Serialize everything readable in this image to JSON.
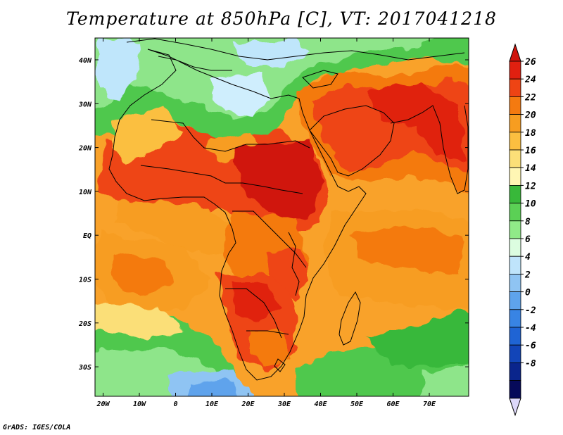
{
  "title": "Temperature at 850hPa [C], VT: 2017041218",
  "footer": "GrADS: IGES/COLA",
  "map": {
    "lat_ticks": [
      "40N",
      "30N",
      "20N",
      "10N",
      "EQ",
      "10S",
      "20S",
      "30S"
    ],
    "lon_ticks": [
      "20W",
      "10W",
      "0",
      "10E",
      "20E",
      "30E",
      "40E",
      "50E",
      "60E",
      "70E"
    ]
  },
  "colorbar": {
    "labels": [
      "26",
      "24",
      "22",
      "20",
      "18",
      "16",
      "14",
      "12",
      "10",
      "8",
      "6",
      "4",
      "2",
      "0",
      "-2",
      "-4",
      "-6",
      "-8"
    ],
    "colors": [
      "#e02010",
      "#ee4414",
      "#f47a10",
      "#f79d20",
      "#fbbf40",
      "#fbdf78",
      "#fff6b4",
      "#38b83a",
      "#5bd055",
      "#90ea88",
      "#dcfde0",
      "#bfe4fb",
      "#8fc4f3",
      "#5ea3ec",
      "#3884e4",
      "#1f64d4",
      "#1245b8",
      "#0a258c",
      "#060a5a"
    ],
    "over_color": "#d0140c",
    "under_color": "#ddd8fa"
  }
}
